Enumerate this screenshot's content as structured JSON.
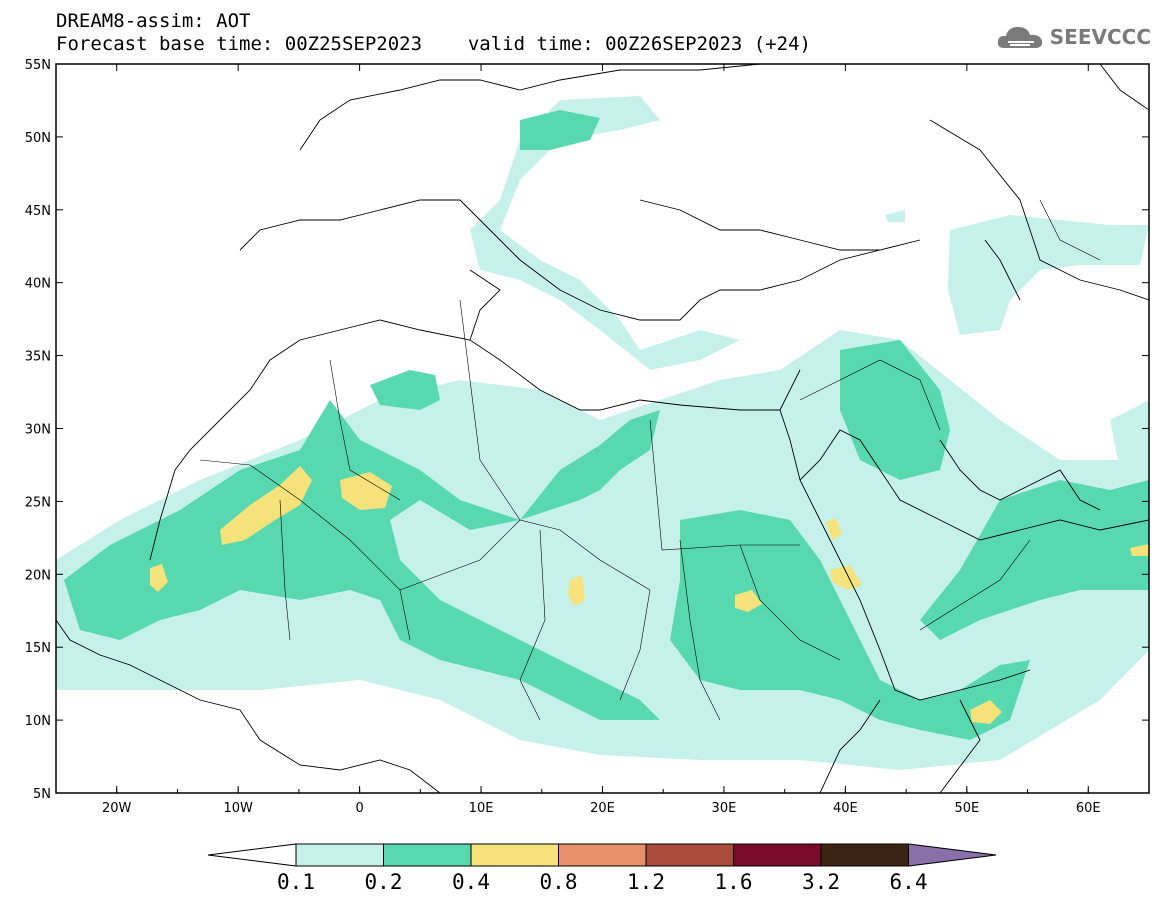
{
  "header": {
    "title": "DREAM8-assim: AOT",
    "base_label": "Forecast base time: 00Z25SEP2023",
    "valid_label": "valid time: 00Z26SEP2023 (+24)"
  },
  "logo": {
    "text": "SEEVCCC",
    "icon": "cloud-logo-icon"
  },
  "map": {
    "lon_ticks": [
      "20W",
      "10W",
      "0",
      "10E",
      "20E",
      "30E",
      "40E",
      "50E",
      "60E"
    ],
    "lat_ticks": [
      "55N",
      "50N",
      "45N",
      "40N",
      "35N",
      "30N",
      "25N",
      "20N",
      "15N",
      "10N",
      "5N"
    ]
  },
  "colorbar": {
    "levels": [
      "0.1",
      "0.2",
      "0.4",
      "0.8",
      "1.2",
      "1.6",
      "3.2",
      "6.4"
    ],
    "colors": [
      "#ffffff",
      "#c6f1ea",
      "#57d8ae",
      "#f5e27a",
      "#e8906b",
      "#aa4c3b",
      "#7a0a2a",
      "#3b2414",
      "#8a70aa"
    ]
  },
  "chart_data": {
    "type": "heatmap",
    "variable": "AOT",
    "lon_range": [
      -25,
      65
    ],
    "lat_range": [
      5,
      55
    ],
    "levels": [
      0.1,
      0.2,
      0.4,
      0.8,
      1.2,
      1.6,
      3.2,
      6.4
    ]
  }
}
